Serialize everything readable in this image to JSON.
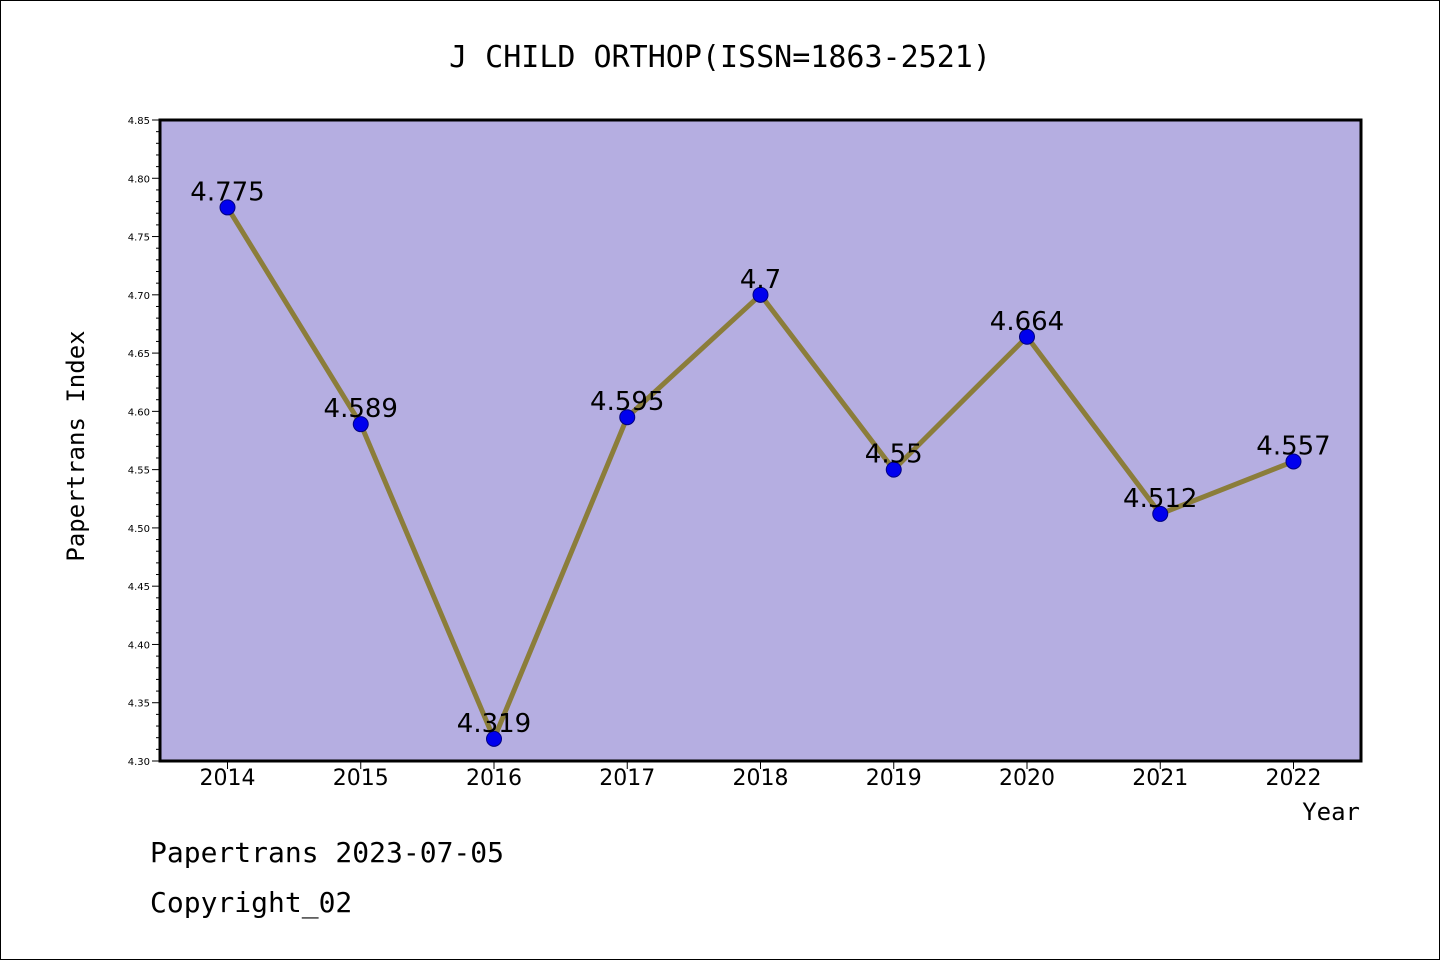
{
  "chart_data": {
    "type": "line",
    "title": "J CHILD ORTHOP(ISSN=1863-2521)",
    "xlabel": "Year",
    "ylabel": "Papertrans Index",
    "categories": [
      "2014",
      "2015",
      "2016",
      "2017",
      "2018",
      "2019",
      "2020",
      "2021",
      "2022"
    ],
    "series": [
      {
        "values": [
          4.775,
          4.589,
          4.319,
          4.595,
          4.7,
          4.55,
          4.664,
          4.512,
          4.557
        ],
        "data_labels": [
          "4.775",
          "4.589",
          "4.319",
          "4.595",
          "4.7",
          "4.55",
          "4.664",
          "4.512",
          "4.557"
        ]
      }
    ],
    "ylim": [
      4.3,
      4.85
    ],
    "yticks": [
      "4.30",
      "4.35",
      "4.40",
      "4.45",
      "4.50",
      "4.55",
      "4.60",
      "4.65",
      "4.70",
      "4.75",
      "4.80",
      "4.85"
    ],
    "grid": false,
    "colors": {
      "plot_background": "#b5aee1",
      "line": "#8b7d3a",
      "marker": "#0000ee",
      "marker_edge": "#000080"
    }
  },
  "footer": {
    "line1": "Papertrans 2023-07-05",
    "line2": "Copyright_02"
  }
}
